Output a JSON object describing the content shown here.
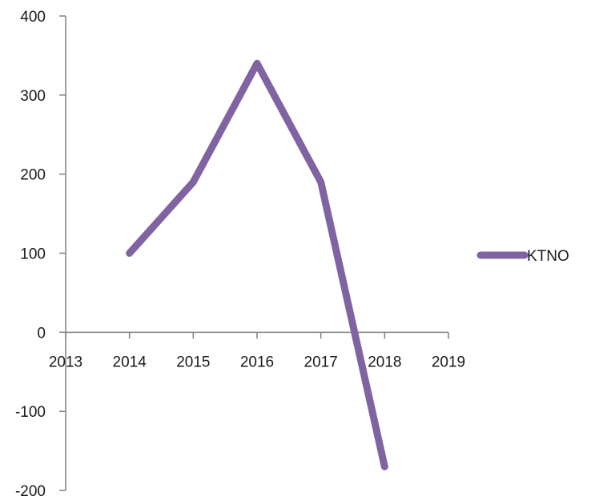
{
  "chart_data": {
    "type": "line",
    "title": "",
    "xlabel": "",
    "ylabel": "",
    "x": [
      2014,
      2015,
      2016,
      2017,
      2018
    ],
    "series": [
      {
        "name": "KTNO",
        "values": [
          100,
          190,
          340,
          190,
          -170
        ],
        "color": "#8064A2"
      }
    ],
    "xlim": [
      2013,
      2019
    ],
    "ylim": [
      -200,
      400
    ],
    "x_ticks": [
      "2013",
      "2014",
      "2015",
      "2016",
      "2017",
      "2018",
      "2019"
    ],
    "y_ticks": [
      "400",
      "300",
      "200",
      "100",
      "0",
      "-100",
      "-200"
    ],
    "x_tick_values": [
      2013,
      2014,
      2015,
      2016,
      2017,
      2018,
      2019
    ],
    "y_tick_values": [
      400,
      300,
      200,
      100,
      0,
      -100,
      -200
    ],
    "grid": false,
    "legend_position": "right"
  }
}
